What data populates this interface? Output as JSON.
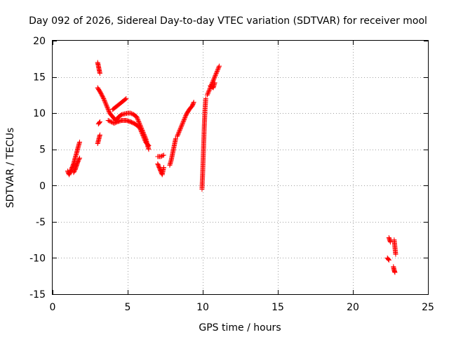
{
  "chart_data": {
    "type": "scatter",
    "title": "Day 092 of 2026, Sidereal Day-to-day VTEC variation (SDTVAR) for receiver mool",
    "xlabel": "GPS time / hours",
    "ylabel": "SDTVAR / TECUs",
    "xlim": [
      0,
      25
    ],
    "ylim": [
      -15,
      20
    ],
    "xticks": [
      0,
      5,
      10,
      15,
      20,
      25
    ],
    "yticks": [
      -15,
      -10,
      -5,
      0,
      5,
      10,
      15,
      20
    ],
    "grid": true,
    "marker": "+",
    "series": [
      {
        "name": "SDTVAR",
        "color": "#ff0000",
        "segments": [
          [
            [
              1.0,
              2.0
            ],
            [
              1.1,
              1.5
            ],
            [
              1.2,
              2.0
            ],
            [
              1.3,
              2.5
            ],
            [
              1.4,
              3.0
            ],
            [
              1.5,
              3.8
            ],
            [
              1.6,
              4.5
            ],
            [
              1.7,
              5.3
            ],
            [
              1.8,
              6.0
            ]
          ],
          [
            [
              1.4,
              1.8
            ],
            [
              1.5,
              2.2
            ],
            [
              1.6,
              2.8
            ],
            [
              1.7,
              3.4
            ],
            [
              1.8,
              3.8
            ]
          ],
          [
            [
              3.0,
              17.0
            ],
            [
              3.05,
              16.5
            ],
            [
              3.1,
              16.0
            ],
            [
              3.15,
              15.5
            ]
          ],
          [
            [
              3.0,
              5.8
            ],
            [
              3.05,
              6.2
            ],
            [
              3.1,
              6.6
            ],
            [
              3.15,
              7.0
            ]
          ],
          [
            [
              3.05,
              8.5
            ],
            [
              3.15,
              8.8
            ]
          ],
          [
            [
              3.0,
              13.5
            ],
            [
              3.2,
              12.8
            ],
            [
              3.4,
              12.0
            ],
            [
              3.6,
              11.0
            ],
            [
              3.8,
              10.0
            ],
            [
              4.0,
              9.5
            ],
            [
              4.2,
              9.0
            ],
            [
              4.4,
              9.5
            ],
            [
              4.6,
              9.8
            ],
            [
              4.8,
              9.9
            ],
            [
              5.0,
              10.0
            ],
            [
              5.2,
              10.0
            ],
            [
              5.4,
              9.8
            ],
            [
              5.6,
              9.5
            ],
            [
              5.8,
              8.5
            ],
            [
              6.0,
              7.5
            ],
            [
              6.2,
              6.5
            ],
            [
              6.4,
              5.0
            ]
          ],
          [
            [
              3.7,
              9.0
            ],
            [
              3.9,
              8.8
            ],
            [
              4.1,
              8.6
            ],
            [
              4.3,
              8.8
            ],
            [
              4.6,
              9.0
            ],
            [
              4.9,
              9.0
            ],
            [
              5.2,
              8.8
            ],
            [
              5.5,
              8.5
            ],
            [
              5.8,
              8.0
            ],
            [
              6.0,
              7.0
            ],
            [
              6.2,
              6.0
            ],
            [
              6.4,
              5.5
            ]
          ],
          [
            [
              4.0,
              10.5
            ],
            [
              4.3,
              11.0
            ],
            [
              4.6,
              11.5
            ],
            [
              4.9,
              12.0
            ]
          ],
          [
            [
              7.0,
              3.0
            ],
            [
              7.1,
              2.5
            ],
            [
              7.2,
              2.0
            ],
            [
              7.3,
              1.5
            ],
            [
              7.4,
              2.5
            ]
          ],
          [
            [
              7.0,
              4.0
            ],
            [
              7.2,
              4.0
            ],
            [
              7.4,
              4.2
            ]
          ],
          [
            [
              7.8,
              2.8
            ],
            [
              7.9,
              3.5
            ],
            [
              8.0,
              4.5
            ],
            [
              8.1,
              5.5
            ],
            [
              8.2,
              6.5
            ]
          ],
          [
            [
              8.3,
              6.8
            ],
            [
              8.5,
              7.8
            ],
            [
              8.7,
              8.8
            ],
            [
              8.9,
              9.8
            ],
            [
              9.1,
              10.5
            ],
            [
              9.3,
              11.0
            ],
            [
              9.4,
              11.5
            ]
          ],
          [
            [
              9.95,
              -0.5
            ],
            [
              10.0,
              2.0
            ],
            [
              10.05,
              5.0
            ],
            [
              10.1,
              8.0
            ],
            [
              10.15,
              10.5
            ],
            [
              10.2,
              12.0
            ]
          ],
          [
            [
              10.3,
              12.5
            ],
            [
              10.5,
              13.5
            ],
            [
              10.7,
              14.5
            ],
            [
              10.9,
              15.5
            ],
            [
              11.1,
              16.5
            ]
          ],
          [
            [
              10.5,
              13.8
            ],
            [
              10.7,
              13.5
            ],
            [
              10.8,
              14.2
            ]
          ],
          [
            [
              22.3,
              -10.0
            ],
            [
              22.4,
              -10.3
            ]
          ],
          [
            [
              22.4,
              -7.2
            ],
            [
              22.5,
              -7.8
            ]
          ],
          [
            [
              22.75,
              -7.5
            ],
            [
              22.8,
              -8.5
            ],
            [
              22.85,
              -9.5
            ]
          ],
          [
            [
              22.7,
              -11.2
            ],
            [
              22.75,
              -11.7
            ],
            [
              22.8,
              -12.0
            ]
          ]
        ]
      }
    ]
  }
}
